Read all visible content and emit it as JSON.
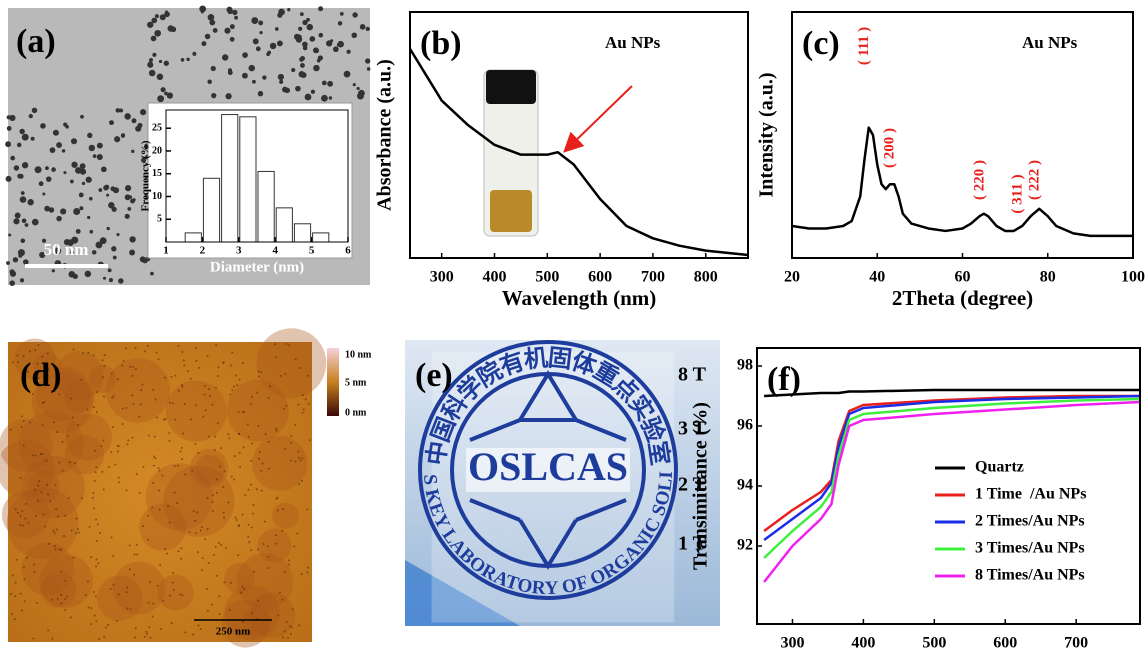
{
  "chart_data": [
    {
      "type": "histogram",
      "xlabel": "Diameter (nm)",
      "ylabel": "Frequency (%)",
      "bins": [
        1.5,
        2,
        2.5,
        3,
        3.5,
        4,
        4.5,
        5,
        5.5
      ],
      "values": [
        2,
        14,
        28,
        27.5,
        15.5,
        7.5,
        4,
        2
      ],
      "color": "#ffffff",
      "xlim": [
        1,
        6
      ],
      "xticks": [
        1,
        2,
        3,
        4,
        5,
        6
      ],
      "ylim": [
        0,
        29
      ],
      "yticks": [
        5,
        10,
        15,
        20,
        25
      ]
    },
    {
      "type": "line",
      "panel_label": "(b)",
      "title": "Au NPs",
      "xlabel": "Wavelength (nm)",
      "ylabel": "Absorbance (a.u.)",
      "x": [
        240,
        300,
        350,
        400,
        450,
        500,
        520,
        550,
        600,
        650,
        700,
        750,
        800,
        880
      ],
      "values": [
        0.85,
        0.64,
        0.54,
        0.46,
        0.42,
        0.42,
        0.43,
        0.38,
        0.24,
        0.13,
        0.08,
        0.05,
        0.03,
        0.012
      ],
      "color": "#000000",
      "xlim": [
        240,
        880
      ],
      "xticks": [
        300,
        400,
        500,
        600,
        700,
        800
      ],
      "ylim": [
        0,
        1
      ]
    },
    {
      "type": "line",
      "panel_label": "(c)",
      "title": "Au NPs",
      "xlabel": "2Theta (degree)",
      "ylabel": "Intensity (a.u.)",
      "x": [
        20,
        24,
        28,
        32,
        34,
        36,
        37,
        38,
        39,
        40,
        41,
        42,
        43,
        44,
        45,
        46,
        48,
        52,
        56,
        60,
        62,
        64,
        65,
        66,
        68,
        70,
        72,
        74,
        76,
        78,
        80,
        82,
        86,
        90,
        94,
        100
      ],
      "values": [
        0.13,
        0.12,
        0.12,
        0.13,
        0.15,
        0.25,
        0.4,
        0.53,
        0.5,
        0.38,
        0.3,
        0.28,
        0.3,
        0.3,
        0.25,
        0.18,
        0.14,
        0.12,
        0.11,
        0.12,
        0.14,
        0.17,
        0.18,
        0.17,
        0.13,
        0.11,
        0.11,
        0.13,
        0.17,
        0.2,
        0.17,
        0.13,
        0.1,
        0.09,
        0.09,
        0.09
      ],
      "color": "#000000",
      "xlim": [
        20,
        100
      ],
      "xticks": [
        20,
        40,
        60,
        80,
        100
      ],
      "ylim": [
        0,
        1
      ],
      "annotations": [
        {
          "text": "( 111 )",
          "x": 38
        },
        {
          "text": "( 200 )",
          "x": 44
        },
        {
          "text": "( 220 )",
          "x": 65
        },
        {
          "text": "( 311 )",
          "x": 74
        },
        {
          "text": "( 222 )",
          "x": 78
        }
      ]
    },
    {
      "type": "line",
      "panel_label": "(f)",
      "xlabel": "Wavelength (nm)",
      "ylabel": "Transimittance (%)",
      "x": [
        260,
        300,
        340,
        355,
        365,
        380,
        400,
        500,
        600,
        700,
        790
      ],
      "series": [
        {
          "name": "Quartz",
          "color": "#000000",
          "values": [
            97.0,
            97.05,
            97.1,
            97.1,
            97.1,
            97.15,
            97.15,
            97.2,
            97.2,
            97.2,
            97.2
          ]
        },
        {
          "name": "1 Time  /Au NPs",
          "color": "#e8201c",
          "values": [
            92.5,
            93.2,
            93.8,
            94.2,
            95.5,
            96.5,
            96.7,
            96.85,
            96.95,
            97.0,
            97.0
          ]
        },
        {
          "name": "2 Times/Au NPs",
          "color": "#1a2ee8",
          "values": [
            92.2,
            92.9,
            93.6,
            94.1,
            95.3,
            96.4,
            96.6,
            96.8,
            96.9,
            96.95,
            97.0
          ]
        },
        {
          "name": "3 Times/Au NPs",
          "color": "#3ef03e",
          "values": [
            91.6,
            92.5,
            93.3,
            93.8,
            95.0,
            96.2,
            96.4,
            96.6,
            96.75,
            96.85,
            96.9
          ]
        },
        {
          "name": "8 Times/Au NPs",
          "color": "#f020f0",
          "values": [
            90.8,
            92.0,
            92.9,
            93.4,
            94.7,
            96.0,
            96.2,
            96.4,
            96.55,
            96.7,
            96.8
          ]
        }
      ],
      "xlim": [
        250,
        790
      ],
      "xticks": [
        300,
        400,
        500,
        600,
        700
      ],
      "ylim": [
        89.4,
        98.6
      ],
      "yticks": [
        92,
        94,
        96,
        98
      ]
    }
  ],
  "images": {
    "a": {
      "label": "(a)",
      "scale_bar": "50 nm"
    },
    "d": {
      "label": "(d)",
      "scale_bar": "250 nm",
      "colorbar": [
        "10 nm",
        "5 nm",
        "0 nm"
      ]
    },
    "e": {
      "label": "(e)",
      "logo_cn": "中国科学院有机固体重点实验室",
      "logo_en": "CAS KEY LABORATORY OF ORGANIC SOLIDS",
      "logo_center": "OSLCAS",
      "layers": [
        "8 T",
        "3 T",
        "2 T",
        "1 T"
      ]
    }
  }
}
